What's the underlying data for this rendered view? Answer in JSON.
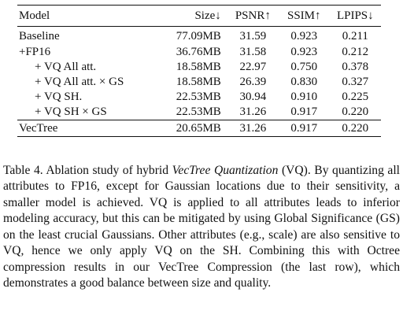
{
  "table": {
    "headers": [
      "Model",
      "Size↓",
      "PSNR↑",
      "SSIM↑",
      "LPIPS↓"
    ],
    "rows": [
      {
        "model": "Baseline",
        "size": "77.09MB",
        "psnr": "31.59",
        "ssim": "0.923",
        "lpips": "0.211"
      },
      {
        "model": "+FP16",
        "size": "36.76MB",
        "psnr": "31.58",
        "ssim": "0.923",
        "lpips": "0.212"
      },
      {
        "model": "+ VQ All att.",
        "size": "18.58MB",
        "psnr": "22.97",
        "ssim": "0.750",
        "lpips": "0.378"
      },
      {
        "model": "+ VQ All att. × GS",
        "size": "18.58MB",
        "psnr": "26.39",
        "ssim": "0.830",
        "lpips": "0.327"
      },
      {
        "model": "+ VQ SH.",
        "size": "22.53MB",
        "psnr": "30.94",
        "ssim": "0.910",
        "lpips": "0.225"
      },
      {
        "model": "+ VQ SH × GS",
        "size": "22.53MB",
        "psnr": "31.26",
        "ssim": "0.917",
        "lpips": "0.220"
      },
      {
        "model": "VecTree",
        "size": "20.65MB",
        "psnr": "31.26",
        "ssim": "0.917",
        "lpips": "0.220"
      }
    ]
  },
  "caption": {
    "prefix": "Table 4. Ablation study of hybrid ",
    "italic": "VecTree Quantization",
    "suffix": " (VQ). By quantizing all attributes to FP16, except for Gaussian locations due to their sensitivity, a smaller model is achieved. VQ is applied to all attributes leads to inferior modeling accuracy, but this can be mitigated by using Global Significance (GS) on the least crucial Gaussians. Other attributes (e.g., scale) are also sensitive to VQ, hence we only apply VQ on the SH. Combining this with Octree compression results in our VecTree Compression (the last row), which demonstrates a good balance between size and quality."
  }
}
